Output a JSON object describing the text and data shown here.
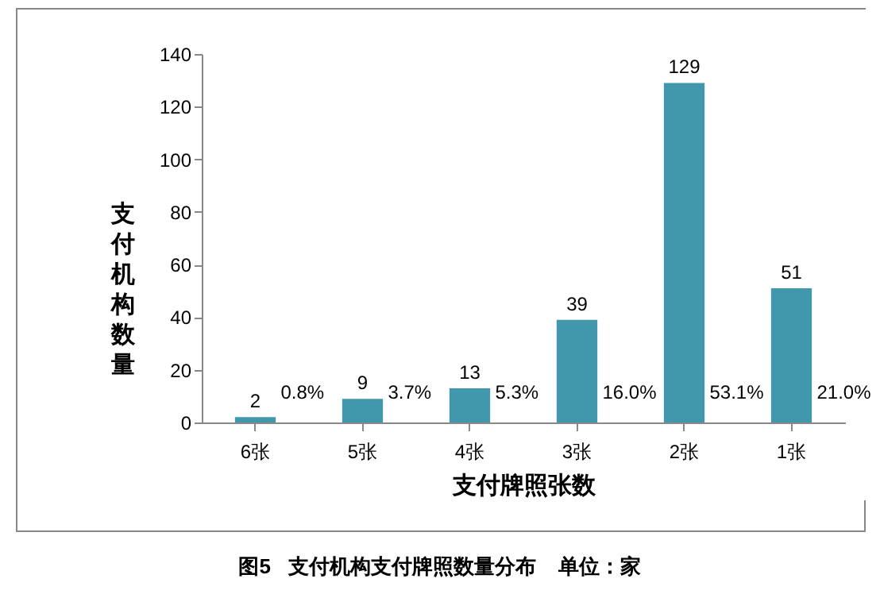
{
  "chart_data": {
    "type": "bar",
    "title": "图5   支付机构支付牌照数量分布    单位：家",
    "xlabel": "支付牌照张数",
    "ylabel": "支付机构数量",
    "categories": [
      "6张",
      "5张",
      "4张",
      "3张",
      "2张",
      "1张"
    ],
    "values": [
      2,
      9,
      13,
      39,
      129,
      51
    ],
    "color": "#4197ab",
    "data_labels": true,
    "ylim": [
      0,
      140
    ],
    "yticks": [
      0,
      20,
      40,
      60,
      80,
      100,
      120,
      140
    ],
    "grid": false,
    "annotations": [
      "0.8%",
      "3.7%",
      "5.3%",
      "16.0%",
      "53.1%",
      "21.0%"
    ]
  }
}
